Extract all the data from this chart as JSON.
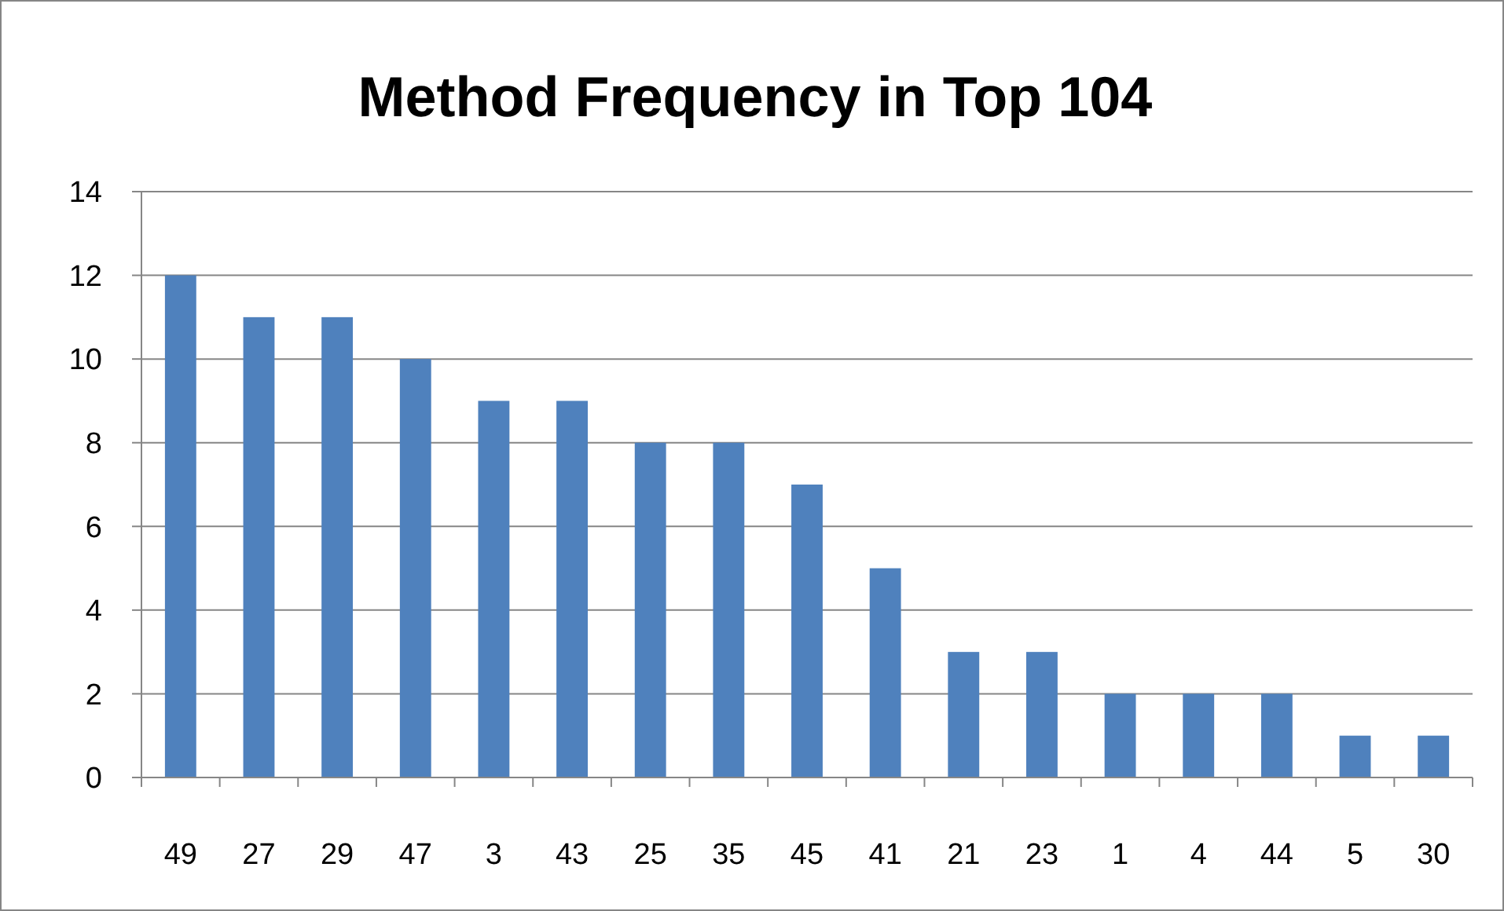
{
  "chart_data": {
    "type": "bar",
    "title": "Method Frequency in Top 104",
    "categories": [
      "49",
      "27",
      "29",
      "47",
      "3",
      "43",
      "25",
      "35",
      "45",
      "41",
      "21",
      "23",
      "1",
      "4",
      "44",
      "5",
      "30"
    ],
    "values": [
      12,
      11,
      11,
      10,
      9,
      9,
      8,
      8,
      7,
      5,
      3,
      3,
      2,
      2,
      2,
      1,
      1
    ],
    "color": "#4f81bd",
    "ylim": [
      0,
      14
    ],
    "yticks": [
      0,
      2,
      4,
      6,
      8,
      10,
      12,
      14
    ],
    "grid": "y"
  }
}
